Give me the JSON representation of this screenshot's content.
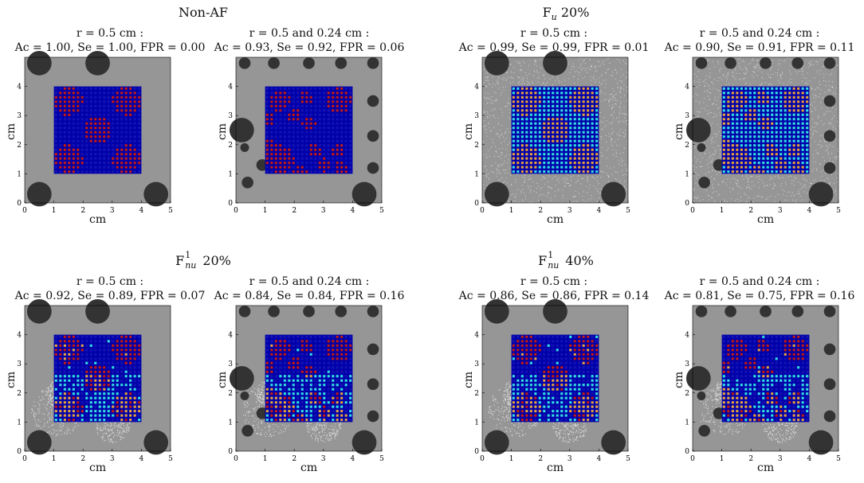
{
  "colors": {
    "background": "#969696",
    "grid_line": "#0000aa",
    "electrode": "#1414b4",
    "af_true": "#8b0000",
    "af_spot": "#c01c1c",
    "detected_noise": "#e8a33a",
    "noise_cell": "#33e0e0",
    "obstacle": "#333333",
    "noise_dots": "#e6e6e6"
  },
  "groups": [
    {
      "title": "Non-AF",
      "title_sub": ""
    },
    {
      "title": "F",
      "title_sub": "u",
      "title_sup": "",
      "title_rest": " 20%"
    },
    {
      "title": "F",
      "title_sub": "nu",
      "title_sup": "1",
      "title_rest": " 20%"
    },
    {
      "title": "F",
      "title_sub": "nu",
      "title_sup": "1",
      "title_rest": " 40%"
    }
  ],
  "chart_data": [
    {
      "type": "heatmap",
      "group": 0,
      "line1": "r = 0.5 cm :",
      "line2": "Ac = 1.00, Se = 1.00, FPR = 0.00",
      "xlabel": "cm",
      "ylabel": "cm",
      "xlim": [
        0,
        5
      ],
      "ylim": [
        0,
        5
      ],
      "xticks": [
        "0",
        "1",
        "2",
        "3",
        "4",
        "5"
      ],
      "yticks": [
        "0",
        "1",
        "2",
        "3",
        "4"
      ],
      "noise": "none",
      "config": "A",
      "accuracy": 1.0,
      "sensitivity": 1.0,
      "fpr": 0.0
    },
    {
      "type": "heatmap",
      "group": 0,
      "line1": "r = 0.5 and 0.24 cm :",
      "line2": "Ac = 0.93, Se = 0.92, FPR = 0.06",
      "xlabel": "",
      "ylabel": "cm",
      "xlim": [
        0,
        5
      ],
      "ylim": [
        0,
        5
      ],
      "xticks": [
        "0",
        "1",
        "2",
        "3",
        "4",
        "5"
      ],
      "yticks": [
        "0",
        "1",
        "2",
        "3",
        "4"
      ],
      "noise": "none",
      "config": "B",
      "accuracy": 0.93,
      "sensitivity": 0.92,
      "fpr": 0.06
    },
    {
      "type": "heatmap",
      "group": 1,
      "line1": "r = 0.5 cm :",
      "line2": "Ac = 0.99, Se = 0.99, FPR = 0.01",
      "xlabel": "cm",
      "ylabel": "cm",
      "xlim": [
        0,
        5
      ],
      "ylim": [
        0,
        5
      ],
      "xticks": [
        "0",
        "1",
        "2",
        "3",
        "4",
        "5"
      ],
      "yticks": [
        "0",
        "1",
        "2",
        "3",
        "4"
      ],
      "noise": "uniform",
      "config": "A",
      "accuracy": 0.99,
      "sensitivity": 0.99,
      "fpr": 0.01
    },
    {
      "type": "heatmap",
      "group": 1,
      "line1": "r = 0.5 and 0.24 cm :",
      "line2": "Ac = 0.90, Se = 0.91, FPR = 0.11",
      "xlabel": "cm",
      "ylabel": "cm",
      "xlim": [
        0,
        5
      ],
      "ylim": [
        0,
        5
      ],
      "xticks": [
        "0",
        "1",
        "2",
        "3",
        "4",
        "5"
      ],
      "yticks": [
        "0",
        "1",
        "2",
        "3",
        "4"
      ],
      "noise": "uniform",
      "config": "B",
      "accuracy": 0.9,
      "sensitivity": 0.91,
      "fpr": 0.11
    },
    {
      "type": "heatmap",
      "group": 2,
      "line1": "r = 0.5 cm :",
      "line2": "Ac = 0.92, Se = 0.89, FPR = 0.07",
      "xlabel": "cm",
      "ylabel": "cm",
      "xlim": [
        0,
        5
      ],
      "ylim": [
        0,
        5
      ],
      "xticks": [
        "0",
        "1",
        "2",
        "3",
        "4",
        "5"
      ],
      "yticks": [
        "0",
        "1",
        "2",
        "3",
        "4"
      ],
      "noise": "nonuniform",
      "config": "A",
      "accuracy": 0.92,
      "sensitivity": 0.89,
      "fpr": 0.07
    },
    {
      "type": "heatmap",
      "group": 2,
      "line1": "r = 0.5 and 0.24 cm :",
      "line2": "Ac = 0.84, Se = 0.84, FPR = 0.16",
      "xlabel": "cm",
      "ylabel": "cm",
      "xlim": [
        0,
        5
      ],
      "ylim": [
        0,
        5
      ],
      "xticks": [
        "0",
        "1",
        "2",
        "3",
        "4",
        "5"
      ],
      "yticks": [
        "0",
        "1",
        "2",
        "3",
        "4"
      ],
      "noise": "nonuniform",
      "config": "B",
      "accuracy": 0.84,
      "sensitivity": 0.84,
      "fpr": 0.16
    },
    {
      "type": "heatmap",
      "group": 3,
      "line1": "r = 0.5 cm :",
      "line2": "Ac = 0.86, Se = 0.86, FPR = 0.14",
      "xlabel": "cm",
      "ylabel": "cm",
      "xlim": [
        0,
        5
      ],
      "ylim": [
        0,
        5
      ],
      "xticks": [
        "0",
        "1",
        "2",
        "3",
        "4",
        "5"
      ],
      "yticks": [
        "0",
        "1",
        "2",
        "3",
        "4"
      ],
      "noise": "nonuniform",
      "config": "A",
      "accuracy": 0.86,
      "sensitivity": 0.86,
      "fpr": 0.14
    },
    {
      "type": "heatmap",
      "group": 3,
      "line1": "r = 0.5 and 0.24 cm :",
      "line2": "Ac = 0.81, Se = 0.75, FPR = 0.16",
      "xlabel": "cm",
      "ylabel": "cm",
      "xlim": [
        0,
        5
      ],
      "ylim": [
        0,
        5
      ],
      "xticks": [
        "0",
        "1",
        "2",
        "3",
        "4",
        "5"
      ],
      "yticks": [
        "0",
        "1",
        "2",
        "3",
        "4"
      ],
      "noise": "nonuniform",
      "config": "B",
      "accuracy": 0.81,
      "sensitivity": 0.75,
      "fpr": 0.16
    }
  ]
}
